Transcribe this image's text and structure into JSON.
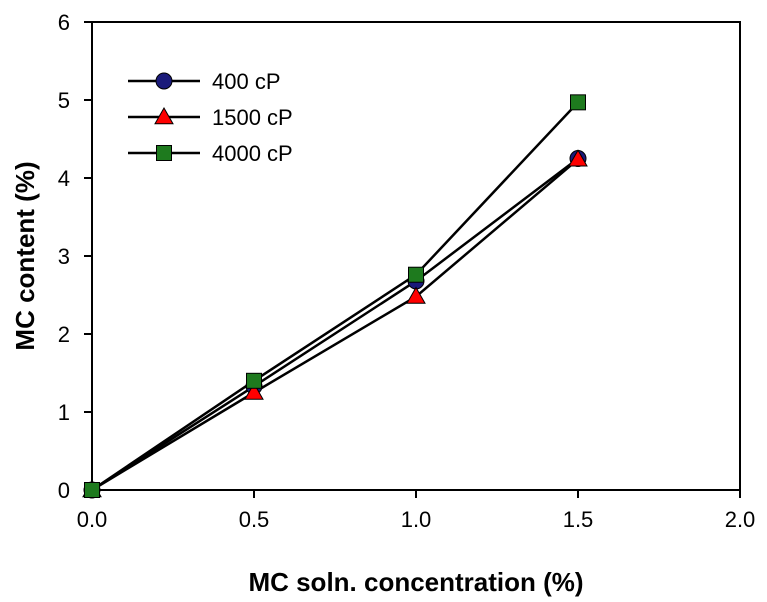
{
  "chart_data": {
    "type": "line",
    "title": "",
    "xlabel": "MC soln. concentration (%)",
    "ylabel": "MC content (%)",
    "xlim": [
      0,
      2
    ],
    "ylim": [
      0,
      6
    ],
    "grid": false,
    "legend_position": "top-left",
    "x_ticks": [
      0,
      0.5,
      1,
      1.5,
      2
    ],
    "x_tick_labels": [
      "0.0",
      "0.5",
      "1.0",
      "1.5",
      "2.0"
    ],
    "y_ticks": [
      0,
      1,
      2,
      3,
      4,
      5,
      6
    ],
    "y_tick_labels": [
      "0",
      "1",
      "2",
      "3",
      "4",
      "5",
      "6"
    ],
    "series": [
      {
        "name": "400 cP",
        "marker": "circle",
        "color": "#1a1a7a",
        "x": [
          0,
          0.5,
          1.0,
          1.5
        ],
        "y": [
          0,
          1.33,
          2.68,
          4.25
        ]
      },
      {
        "name": "1500 cP",
        "marker": "triangle",
        "color": "#ff0000",
        "x": [
          0,
          0.5,
          1.0,
          1.5
        ],
        "y": [
          0,
          1.25,
          2.48,
          4.24
        ]
      },
      {
        "name": "4000 cP",
        "marker": "square",
        "color": "#1e7a1e",
        "x": [
          0,
          0.5,
          1.0,
          1.5
        ],
        "y": [
          0,
          1.4,
          2.76,
          4.97
        ]
      }
    ]
  }
}
